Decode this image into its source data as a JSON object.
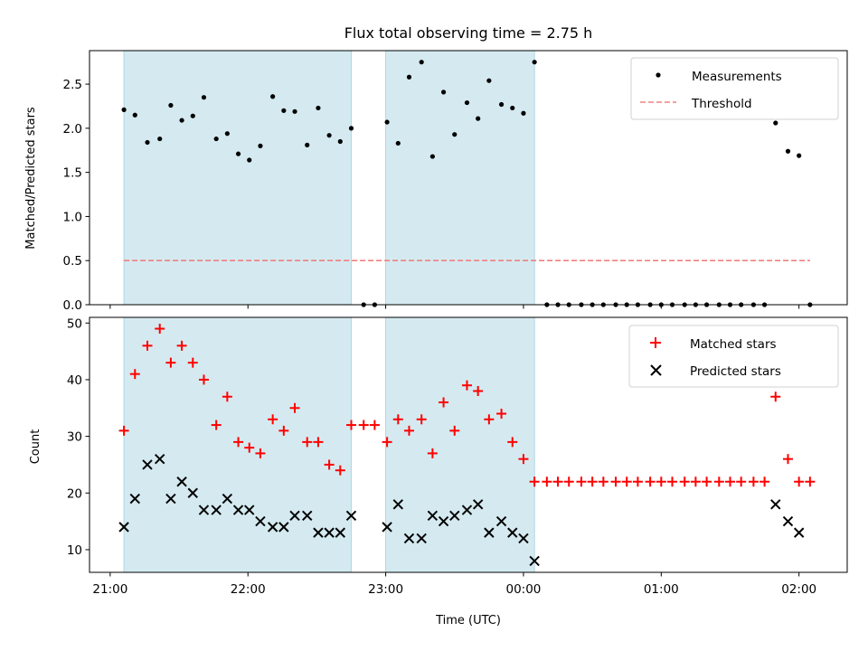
{
  "chart_data": [
    {
      "type": "scatter",
      "title": "Flux total observing time = 2.75 h",
      "ylabel": "Matched/Predicted stars",
      "ylim": [
        0,
        2.88
      ],
      "yticks": [
        0.0,
        0.5,
        1.0,
        1.5,
        2.0,
        2.5
      ],
      "ytick_labels": [
        "0.0",
        "0.5",
        "1.0",
        "1.5",
        "2.0",
        "2.5"
      ],
      "xlim": [
        -0.15,
        5.35
      ],
      "xticks": [
        0,
        1,
        2,
        3,
        4,
        5
      ],
      "shaded_intervals": [
        [
          0.1,
          1.75
        ],
        [
          2.0,
          3.08
        ]
      ],
      "legend_position": "upper right",
      "series": [
        {
          "name": "Measurements",
          "marker": "dot",
          "color": "#000000",
          "x": [
            0.1,
            0.18,
            0.27,
            0.36,
            0.44,
            0.52,
            0.6,
            0.68,
            0.77,
            0.85,
            0.93,
            1.01,
            1.09,
            1.18,
            1.26,
            1.34,
            1.43,
            1.51,
            1.59,
            1.67,
            1.75,
            1.84,
            1.92,
            2.01,
            2.09,
            2.17,
            2.26,
            2.34,
            2.42,
            2.5,
            2.59,
            2.67,
            2.75,
            2.84,
            2.92,
            3.0,
            3.08,
            3.17,
            3.25,
            3.33,
            3.42,
            3.5,
            3.58,
            3.67,
            3.75,
            3.83,
            3.92,
            4.0,
            4.08,
            4.17,
            4.25,
            4.33,
            4.42,
            4.5,
            4.58,
            4.67,
            4.75,
            4.83,
            4.92,
            5.0,
            5.08
          ],
          "y": [
            2.21,
            2.15,
            1.84,
            1.88,
            2.26,
            2.09,
            2.14,
            2.35,
            1.88,
            1.94,
            1.71,
            1.64,
            1.8,
            2.36,
            2.2,
            2.19,
            1.81,
            2.23,
            1.92,
            1.85,
            2.0,
            0.0,
            0.0,
            2.07,
            1.83,
            2.58,
            2.75,
            1.68,
            2.41,
            1.93,
            2.29,
            2.11,
            2.54,
            2.27,
            2.23,
            2.17,
            2.75,
            0.0,
            0.0,
            0.0,
            0.0,
            0.0,
            0.0,
            0.0,
            0.0,
            0.0,
            0.0,
            0.0,
            0.0,
            0.0,
            0.0,
            0.0,
            0.0,
            0.0,
            0.0,
            0.0,
            0.0,
            2.06,
            1.74,
            1.69,
            0.0
          ]
        },
        {
          "name": "Threshold",
          "style": "dashed",
          "color": "#f08080",
          "x": [
            0.1,
            5.08
          ],
          "y": [
            0.5,
            0.5
          ]
        }
      ]
    },
    {
      "type": "scatter",
      "ylabel": "Count",
      "xlabel": "Time (UTC)",
      "ylim": [
        6,
        51
      ],
      "yticks": [
        10,
        20,
        30,
        40,
        50
      ],
      "ytick_labels": [
        "10",
        "20",
        "30",
        "40",
        "50"
      ],
      "xlim": [
        -0.15,
        5.35
      ],
      "xticks": [
        0,
        1,
        2,
        3,
        4,
        5
      ],
      "xtick_labels": [
        "21:00",
        "22:00",
        "23:00",
        "00:00",
        "01:00",
        "02:00"
      ],
      "shaded_intervals": [
        [
          0.1,
          1.75
        ],
        [
          2.0,
          3.08
        ]
      ],
      "legend_position": "upper right",
      "series": [
        {
          "name": "Matched stars",
          "marker": "plus",
          "color": "#ff0000",
          "x": [
            0.1,
            0.18,
            0.27,
            0.36,
            0.44,
            0.52,
            0.6,
            0.68,
            0.77,
            0.85,
            0.93,
            1.01,
            1.09,
            1.18,
            1.26,
            1.34,
            1.43,
            1.51,
            1.59,
            1.67,
            1.75,
            1.84,
            1.92,
            2.01,
            2.09,
            2.17,
            2.26,
            2.34,
            2.42,
            2.5,
            2.59,
            2.67,
            2.75,
            2.84,
            2.92,
            3.0,
            3.08,
            3.17,
            3.25,
            3.33,
            3.42,
            3.5,
            3.58,
            3.67,
            3.75,
            3.83,
            3.92,
            4.0,
            4.08,
            4.17,
            4.25,
            4.33,
            4.42,
            4.5,
            4.58,
            4.67,
            4.75,
            4.83,
            4.92,
            5.0,
            5.08
          ],
          "y": [
            31,
            41,
            46,
            49,
            43,
            46,
            43,
            40,
            32,
            37,
            29,
            28,
            27,
            33,
            31,
            35,
            29,
            29,
            25,
            24,
            32,
            32,
            32,
            29,
            33,
            31,
            33,
            27,
            36,
            31,
            39,
            38,
            33,
            34,
            29,
            26,
            22,
            22,
            22,
            22,
            22,
            22,
            22,
            22,
            22,
            22,
            22,
            22,
            22,
            22,
            22,
            22,
            22,
            22,
            22,
            22,
            22,
            37,
            26,
            22,
            22
          ]
        },
        {
          "name": "Predicted stars",
          "marker": "x",
          "color": "#000000",
          "x": [
            0.1,
            0.18,
            0.27,
            0.36,
            0.44,
            0.52,
            0.6,
            0.68,
            0.77,
            0.85,
            0.93,
            1.01,
            1.09,
            1.18,
            1.26,
            1.34,
            1.43,
            1.51,
            1.59,
            1.67,
            1.75,
            2.01,
            2.09,
            2.17,
            2.26,
            2.34,
            2.42,
            2.5,
            2.59,
            2.67,
            2.75,
            2.84,
            2.92,
            3.0,
            3.08,
            4.83,
            4.92,
            5.0
          ],
          "y": [
            14,
            19,
            25,
            26,
            19,
            22,
            20,
            17,
            17,
            19,
            17,
            17,
            15,
            14,
            14,
            16,
            16,
            13,
            13,
            13,
            16,
            14,
            18,
            12,
            12,
            16,
            15,
            16,
            17,
            18,
            13,
            15,
            13,
            12,
            8,
            18,
            15,
            13
          ]
        }
      ]
    }
  ],
  "colors": {
    "shade": "#d4eaf0",
    "shade_edge": "#add8e6",
    "threshold": "#f08080",
    "matched": "#ff0000",
    "predicted": "#000000"
  }
}
